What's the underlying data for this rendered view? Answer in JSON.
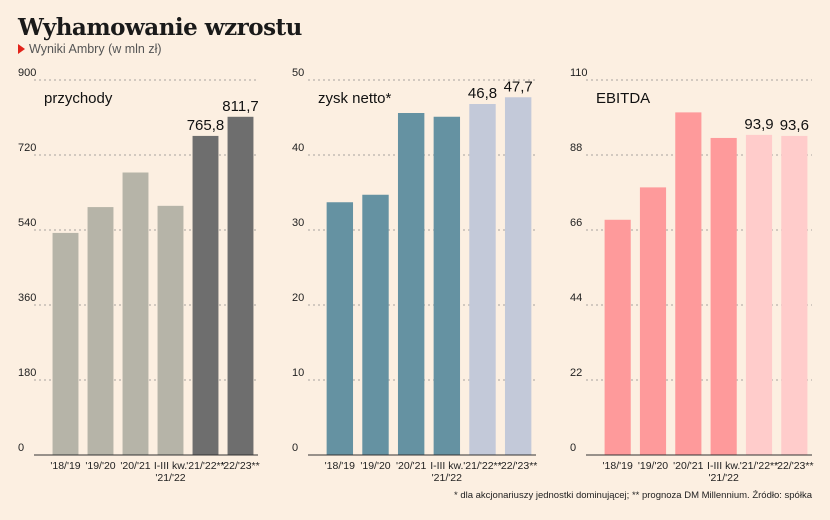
{
  "header": {
    "title": "Wyhamowanie wzrostu",
    "subtitle": "Wyniki Ambry (w mln zł)"
  },
  "footnote": "* dla akcjonariuszy jednostki dominującej; ** prognoza DM Millennium. Źródło: spółka",
  "chart_data": [
    {
      "type": "bar",
      "title": "przychody",
      "categories": [
        [
          "'18/'19"
        ],
        [
          "'19/'20"
        ],
        [
          "'20/'21"
        ],
        [
          "I-III kw.",
          "'21/'22"
        ],
        [
          "'21/'22**"
        ],
        [
          "'22/'23**"
        ]
      ],
      "values": [
        533,
        595,
        678,
        598,
        765.8,
        811.7
      ],
      "data_labels": [
        "",
        "",
        "",
        "",
        "765,8",
        "811,7"
      ],
      "colors": [
        "#b6b4a8",
        "#b6b4a8",
        "#b6b4a8",
        "#b6b4a8",
        "#6e6e6e",
        "#6e6e6e"
      ],
      "ylim": [
        0,
        900
      ],
      "yticks": [
        "0",
        "180",
        "360",
        "540",
        "720",
        "900"
      ]
    },
    {
      "type": "bar",
      "title": "zysk netto*",
      "categories": [
        [
          "'18/'19"
        ],
        [
          "'19/'20"
        ],
        [
          "'20/'21"
        ],
        [
          "I-III kw.",
          "'21/'22"
        ],
        [
          "'21/'22**"
        ],
        [
          "'22/'23**"
        ]
      ],
      "values": [
        33.7,
        34.7,
        45.6,
        45.1,
        46.8,
        47.7
      ],
      "data_labels": [
        "",
        "",
        "",
        "",
        "46,8",
        "47,7"
      ],
      "colors": [
        "#6592a2",
        "#6592a2",
        "#6592a2",
        "#6592a2",
        "#c3c9d9",
        "#c3c9d9"
      ],
      "ylim": [
        0,
        50
      ],
      "yticks": [
        "0",
        "10",
        "20",
        "30",
        "40",
        "50"
      ]
    },
    {
      "type": "bar",
      "title": "EBITDA",
      "categories": [
        [
          "'18/'19"
        ],
        [
          "'19/'20"
        ],
        [
          "'20/'21"
        ],
        [
          "I-III kw.",
          "'21/'22"
        ],
        [
          "'21/'22**"
        ],
        [
          "'22/'23**"
        ]
      ],
      "values": [
        69,
        78.5,
        100.5,
        93,
        93.9,
        93.6
      ],
      "data_labels": [
        "",
        "",
        "",
        "",
        "93,9",
        "93,6"
      ],
      "colors": [
        "#fe9a9b",
        "#fe9a9b",
        "#fe9a9b",
        "#fe9a9b",
        "#ffcccb",
        "#ffcccb"
      ],
      "ylim": [
        0,
        110
      ],
      "yticks": [
        "0",
        "22",
        "44",
        "66",
        "88",
        "110"
      ]
    }
  ]
}
